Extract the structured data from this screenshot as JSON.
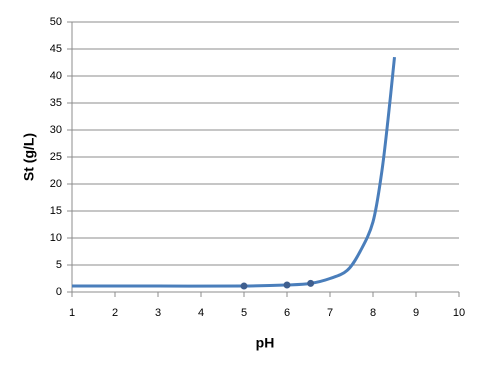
{
  "chart_data": {
    "type": "line",
    "xlabel": "pH",
    "ylabel": "St (g/L)",
    "xlim": [
      1,
      10
    ],
    "xticks": [
      1,
      2,
      3,
      4,
      5,
      6,
      7,
      8,
      9,
      10
    ],
    "ylim": [
      0,
      50
    ],
    "yticks": [
      0,
      5,
      10,
      15,
      20,
      25,
      30,
      35,
      40,
      45,
      50
    ],
    "grid": true,
    "series": [
      {
        "color": "#4a7ebb",
        "line": true,
        "marker": false,
        "x": [
          1,
          3,
          5,
          6,
          6.55,
          7,
          7.4,
          7.7,
          8,
          8.2,
          8.35,
          8.5
        ],
        "values": [
          1.1,
          1.1,
          1.1,
          1.3,
          1.6,
          2.5,
          4,
          7.5,
          13,
          22,
          32,
          43.5
        ]
      },
      {
        "color": "#3f5f8f",
        "line": false,
        "marker": true,
        "x": [
          5,
          6,
          6.55
        ],
        "values": [
          1.1,
          1.3,
          1.6
        ]
      }
    ]
  }
}
